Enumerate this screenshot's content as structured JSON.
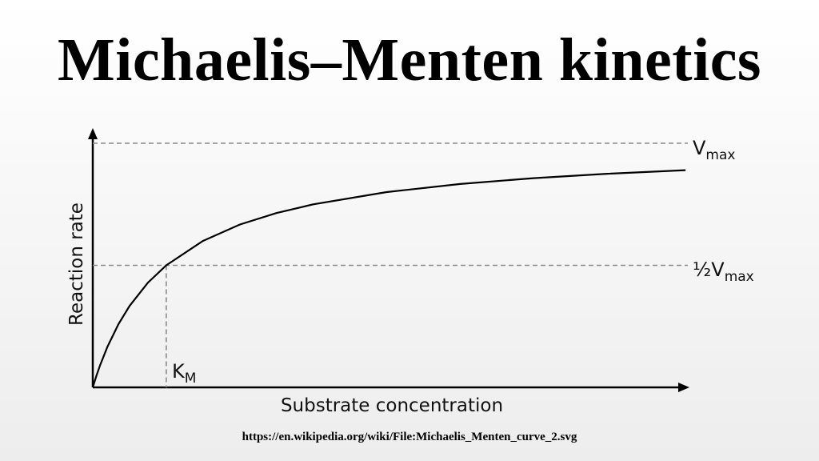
{
  "title": "Michaelis–Menten kinetics",
  "source": "https://en.wikipedia.org/wiki/File:Michaelis_Menten_curve_2.svg",
  "chart_data": {
    "type": "line",
    "title": "",
    "xlabel": "Substrate concentration",
    "ylabel": "Reaction rate",
    "grid": false,
    "legend": "none",
    "x_unit_note": "KM",
    "y_unit_note": "Vmax",
    "xlim": [
      0,
      8.1
    ],
    "ylim": [
      0,
      1.06
    ],
    "series": [
      {
        "x": [
          0,
          0.05,
          0.1,
          0.2,
          0.35,
          0.5,
          0.75,
          1,
          1.5,
          2,
          2.5,
          3,
          4,
          5,
          6,
          7,
          8.07
        ],
        "y": [
          0,
          0.048,
          0.091,
          0.167,
          0.259,
          0.333,
          0.429,
          0.5,
          0.6,
          0.667,
          0.714,
          0.75,
          0.8,
          0.833,
          0.857,
          0.875,
          0.89
        ]
      }
    ],
    "reference_lines": [
      {
        "axis": "y",
        "value": 1,
        "label_main": "V",
        "label_sub": "max",
        "label_prefix": ""
      },
      {
        "axis": "y",
        "value": 0.5,
        "label_main": "V",
        "label_sub": "max",
        "label_prefix": "½"
      },
      {
        "axis": "x",
        "value": 1,
        "label_main": "K",
        "label_sub": "M"
      }
    ],
    "colors": {
      "curve": "#000000",
      "axes": "#000000",
      "dashed": "#888888"
    }
  }
}
